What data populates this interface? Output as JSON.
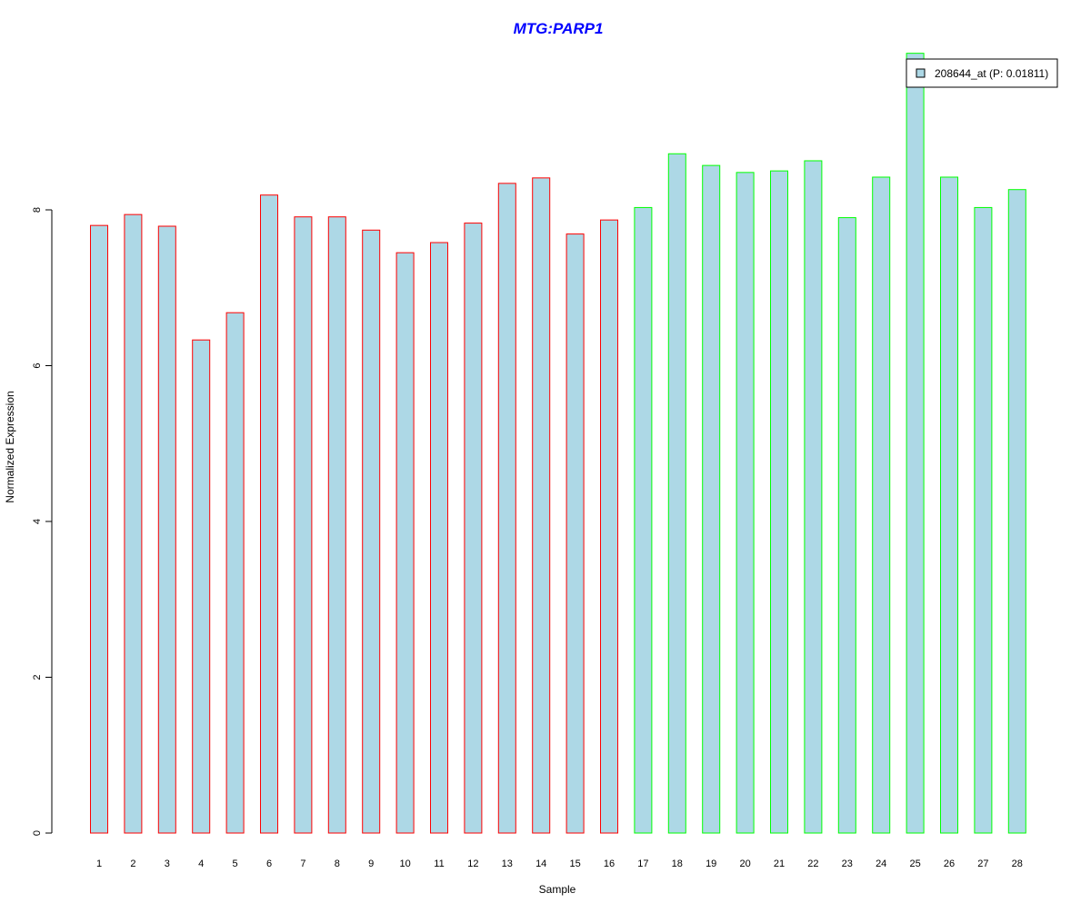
{
  "chart_data": {
    "type": "bar",
    "title": "MTG:PARP1",
    "xlabel": "Sample",
    "ylabel": "Normalized Expression",
    "ylim": [
      0,
      10
    ],
    "yticks": [
      0,
      2,
      4,
      6,
      8
    ],
    "categories": [
      "1",
      "2",
      "3",
      "4",
      "5",
      "6",
      "7",
      "8",
      "9",
      "10",
      "11",
      "12",
      "13",
      "14",
      "15",
      "16",
      "17",
      "18",
      "19",
      "20",
      "21",
      "22",
      "23",
      "24",
      "25",
      "26",
      "27",
      "28"
    ],
    "values": [
      7.8,
      7.94,
      7.79,
      6.33,
      6.68,
      8.19,
      7.91,
      7.91,
      7.74,
      7.45,
      7.58,
      7.83,
      8.34,
      8.41,
      7.69,
      7.87,
      8.03,
      8.72,
      8.57,
      8.48,
      8.5,
      8.63,
      7.9,
      8.42,
      10.01,
      8.42,
      8.03,
      8.26
    ],
    "groups": [
      "red",
      "red",
      "red",
      "red",
      "red",
      "red",
      "red",
      "red",
      "red",
      "red",
      "red",
      "red",
      "red",
      "red",
      "red",
      "red",
      "green",
      "green",
      "green",
      "green",
      "green",
      "green",
      "green",
      "green",
      "green",
      "green",
      "green",
      "green"
    ],
    "legend": {
      "label": "208644_at (P: 0.01811)",
      "placement": "top-right"
    },
    "grid": false
  },
  "colors": {
    "fill": "#add8e6",
    "red": "#ff0000",
    "green": "#00ff00",
    "title": "#0000ff",
    "axis": "#000000"
  }
}
